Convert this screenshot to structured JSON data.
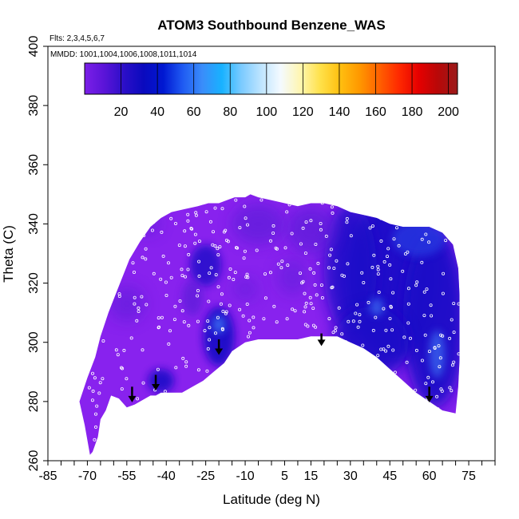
{
  "chart_data": {
    "type": "heatmap",
    "title": "ATOM3 Southbound Benzene_WAS",
    "subtitle_flights": "Flts: 2,3,4,5,6,7",
    "subtitle_dates": "MMDD: 1001,1004,1006,1008,1011,1014",
    "xlabel": "Latitude (deg N)",
    "ylabel": "Theta (C)",
    "xlim": [
      -85,
      85
    ],
    "ylim": [
      260,
      400
    ],
    "x_tick_labels": [
      -85,
      -70,
      -55,
      -40,
      -25,
      -10,
      5,
      15,
      30,
      45,
      60,
      75
    ],
    "x_minor_ticks": [
      -85,
      -80,
      -75,
      -70,
      -65,
      -60,
      -55,
      -50,
      -45,
      -40,
      -35,
      -30,
      -25,
      -20,
      -15,
      -10,
      -5,
      0,
      5,
      10,
      15,
      20,
      25,
      30,
      35,
      40,
      45,
      50,
      55,
      60,
      65,
      70,
      75,
      80,
      85
    ],
    "y_ticks": [
      260,
      280,
      300,
      320,
      340,
      360,
      380,
      400
    ],
    "colorbar": {
      "range": [
        0,
        205
      ],
      "ticks": [
        20,
        40,
        60,
        80,
        100,
        120,
        140,
        160,
        180,
        200
      ],
      "colors": [
        "#7B1FE8",
        "#5A14D8",
        "#2C0FC8",
        "#0A0ABE",
        "#0018D2",
        "#1F5AF2",
        "#3A8DFA",
        "#18B2FF",
        "#7CCBFF",
        "#BFE5FF",
        "#F4FAFF",
        "#FFF6B0",
        "#FFE14A",
        "#FFC010",
        "#FF9800",
        "#FF6200",
        "#FF2A00",
        "#E60000",
        "#B80808",
        "#9A1A1A"
      ]
    },
    "field_colors": {
      "background": "#8822EE",
      "dark_blue": "#1A0FC8",
      "mid_blue": "#2838E0",
      "light_blue": "#3A6AF0",
      "purple_blue": "#5A1FD8"
    },
    "domain_outline": {
      "lat": [
        -73,
        -70,
        -67,
        -65,
        -62,
        -58,
        -54,
        -50,
        -46,
        -42,
        -38,
        -33,
        -28,
        -24,
        -20,
        -17,
        -14,
        -12,
        -10,
        -8,
        -5,
        0,
        5,
        10,
        15,
        20,
        25,
        30,
        35,
        40,
        45,
        50,
        55,
        60,
        65,
        69,
        71,
        71.5,
        71.5,
        71,
        70,
        65,
        60,
        55,
        50,
        45,
        40,
        35,
        30,
        25,
        20,
        15,
        10,
        5,
        0,
        -5,
        -10,
        -15,
        -18,
        -22,
        -26,
        -30,
        -34,
        -38,
        -42,
        -44,
        -46,
        -48,
        -50,
        -52,
        -55,
        -58,
        -61,
        -63,
        -65,
        -66,
        -68,
        -69,
        -71,
        -73
      ],
      "theta": [
        280,
        288,
        295,
        302,
        310,
        319,
        328,
        334,
        339,
        342,
        344,
        345,
        346,
        347,
        347,
        348,
        349,
        349,
        349,
        350,
        349,
        348,
        347,
        346,
        347,
        347,
        346,
        344,
        343,
        342,
        340,
        339,
        339,
        339,
        337,
        333,
        325,
        316,
        294,
        285,
        276,
        277,
        280,
        283,
        287,
        291,
        295,
        298,
        300,
        302,
        302,
        302,
        301,
        301,
        301,
        301,
        300,
        297,
        293,
        290,
        287,
        285,
        283,
        283,
        283,
        282,
        282,
        281,
        280,
        279,
        278,
        281,
        282,
        277,
        274,
        268,
        263,
        262,
        272,
        280
      ]
    },
    "arrows": [
      {
        "lat": -53,
        "theta_top": 285,
        "theta_tip": 280
      },
      {
        "lat": -44,
        "theta_top": 289,
        "theta_tip": 284
      },
      {
        "lat": -20,
        "theta_top": 301,
        "theta_tip": 296
      },
      {
        "lat": 19,
        "theta_top": 303,
        "theta_tip": 299
      },
      {
        "lat": 60,
        "theta_top": 285,
        "theta_tip": 280
      }
    ],
    "samples": {
      "seed": 20,
      "count": 620
    }
  }
}
